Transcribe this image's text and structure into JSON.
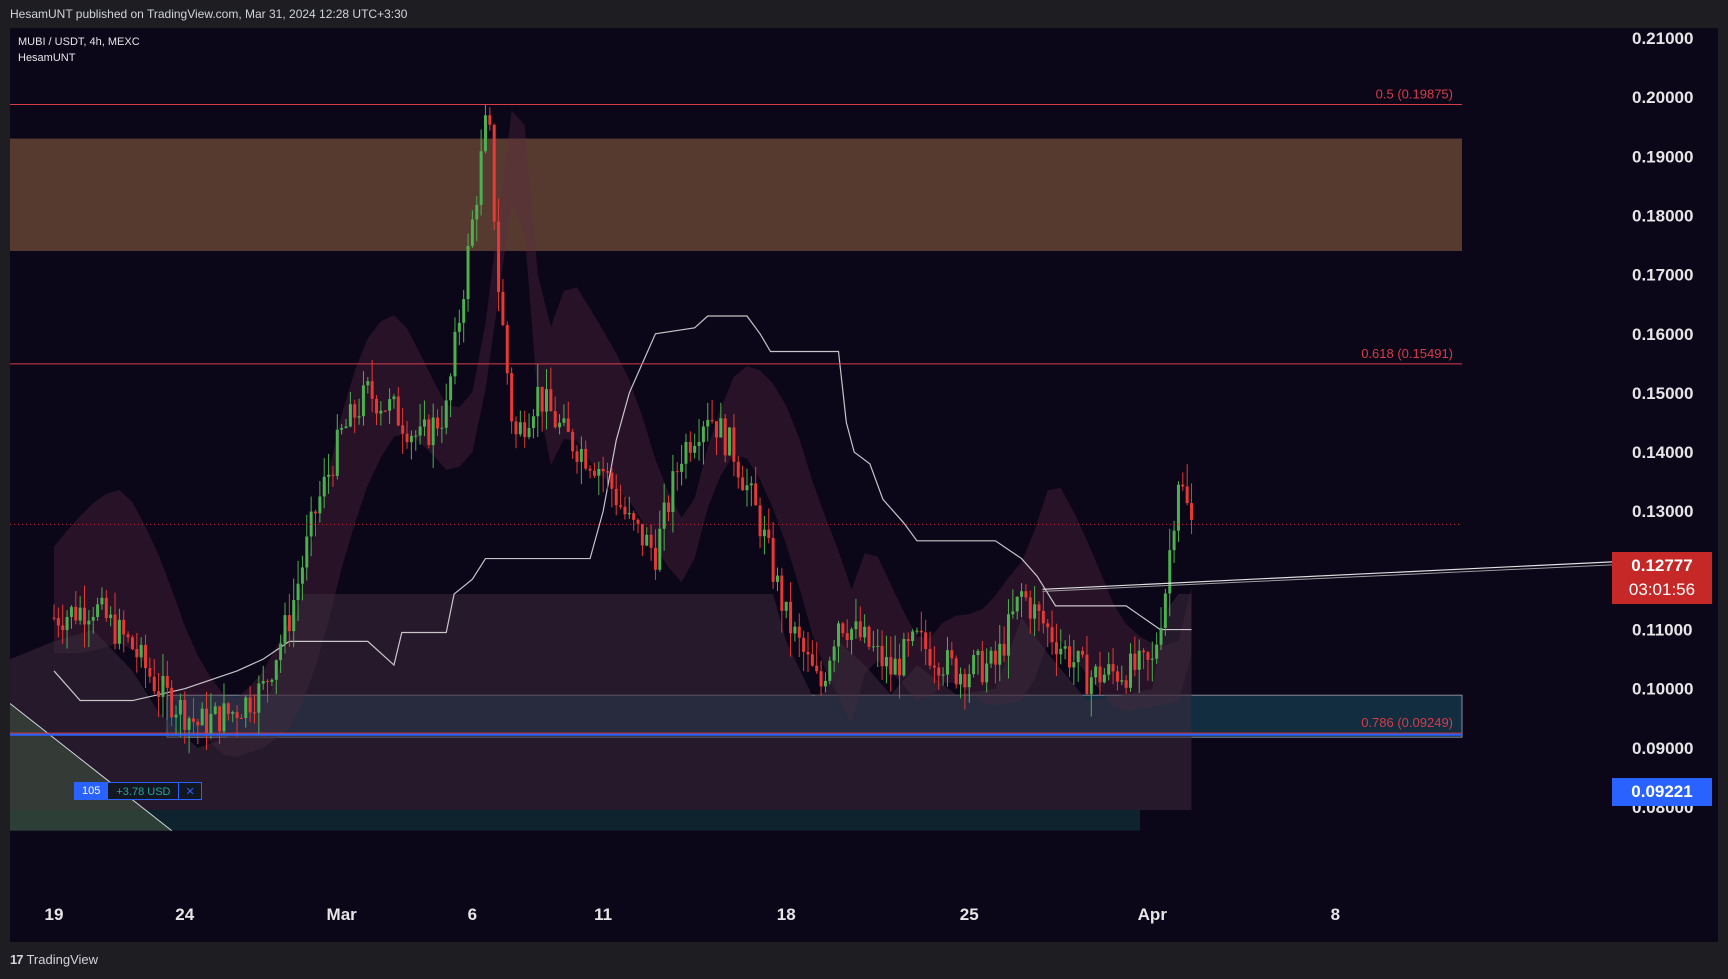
{
  "header": {
    "text": "HesamUNT published on TradingView.com, Mar 31, 2024 12:28 UTC+3:30"
  },
  "symbol": {
    "line1": "MUBI / USDT, 4h, MEXC",
    "line2": "HesamUNT"
  },
  "footer": {
    "brand": "TradingView",
    "logo_glyph": "17"
  },
  "last_price": {
    "value": "0.12777",
    "countdown": "03:01:56"
  },
  "alert_price": {
    "value": "0.09221"
  },
  "position": {
    "qty": "105",
    "pnl": "+3.78 USD",
    "close_glyph": "✕"
  },
  "colors": {
    "background": "#0c0619",
    "zone_supply": "#5c3d30",
    "zone_demand": "#143347",
    "fib_line": "#d63d48",
    "up": "#4caf50",
    "down": "#e53935",
    "last_price": "#c62828",
    "alert": "#2962ff"
  },
  "chart_data": {
    "type": "candlestick",
    "symbol": "MUBI / USDT",
    "interval": "4h",
    "exchange": "MEXC",
    "ylim": [
      0.076,
      0.214
    ],
    "y_ticks": [
      "0.21000",
      "0.20000",
      "0.19000",
      "0.18000",
      "0.17000",
      "0.16000",
      "0.15000",
      "0.14000",
      "0.13000",
      "0.12000",
      "0.11000",
      "0.10000",
      "0.09000",
      "0.08000"
    ],
    "x_ticks": [
      "19",
      "24",
      "Mar",
      "6",
      "11",
      "18",
      "25",
      "Apr",
      "8"
    ],
    "fib_levels": [
      {
        "label": "0.5 (0.19875)",
        "value": 0.19875
      },
      {
        "label": "0.618 (0.15491)",
        "value": 0.15491
      },
      {
        "label": "0.786 (0.09249)",
        "value": 0.09249
      }
    ],
    "zones": [
      {
        "name": "supply",
        "top": 0.193,
        "bottom": 0.174
      },
      {
        "name": "demand",
        "top": 0.0989,
        "bottom": 0.0918
      }
    ],
    "last_price": 0.12777,
    "alert_price": 0.09221,
    "trendline": {
      "start": {
        "day": 37.8,
        "price": 0.1168
      },
      "end": {
        "day": 55.5,
        "price": 0.1215
      }
    },
    "price_path": [
      [
        0,
        0.112
      ],
      [
        1.5,
        0.114
      ],
      [
        3,
        0.107
      ],
      [
        4,
        0.1
      ],
      [
        5.5,
        0.094
      ],
      [
        6.8,
        0.096
      ],
      [
        8,
        0.1
      ],
      [
        9,
        0.112
      ],
      [
        10,
        0.13
      ],
      [
        11,
        0.143
      ],
      [
        12,
        0.15
      ],
      [
        13,
        0.147
      ],
      [
        14,
        0.142
      ],
      [
        15,
        0.147
      ],
      [
        16.2,
        0.185
      ],
      [
        16.6,
        0.198
      ],
      [
        17,
        0.168
      ],
      [
        17.6,
        0.142
      ],
      [
        18.5,
        0.15
      ],
      [
        19.5,
        0.143
      ],
      [
        21,
        0.137
      ],
      [
        22,
        0.128
      ],
      [
        23,
        0.123
      ],
      [
        24,
        0.14
      ],
      [
        25,
        0.147
      ],
      [
        26,
        0.14
      ],
      [
        27,
        0.128
      ],
      [
        28,
        0.112
      ],
      [
        29.3,
        0.1
      ],
      [
        30,
        0.112
      ],
      [
        31,
        0.108
      ],
      [
        32,
        0.103
      ],
      [
        33,
        0.108
      ],
      [
        34.5,
        0.103
      ],
      [
        36,
        0.104
      ],
      [
        37,
        0.116
      ],
      [
        38,
        0.11
      ],
      [
        39.5,
        0.102
      ],
      [
        41,
        0.103
      ],
      [
        42,
        0.104
      ],
      [
        42.5,
        0.117
      ],
      [
        43,
        0.136
      ],
      [
        43.5,
        0.12777
      ]
    ],
    "reference_line": [
      [
        0,
        0.103
      ],
      [
        1,
        0.098
      ],
      [
        3,
        0.098
      ],
      [
        5,
        0.1
      ],
      [
        7,
        0.103
      ],
      [
        8,
        0.105
      ],
      [
        9,
        0.108
      ],
      [
        12,
        0.108
      ],
      [
        13,
        0.104
      ],
      [
        13.3,
        0.1095
      ],
      [
        15,
        0.1095
      ],
      [
        15.3,
        0.116
      ],
      [
        16,
        0.1185
      ],
      [
        16.5,
        0.122
      ],
      [
        20.5,
        0.122
      ],
      [
        21,
        0.13
      ],
      [
        21.5,
        0.142
      ],
      [
        22,
        0.15
      ],
      [
        23,
        0.16
      ],
      [
        24.5,
        0.161
      ],
      [
        25,
        0.163
      ],
      [
        26.5,
        0.163
      ],
      [
        27,
        0.16
      ],
      [
        27.4,
        0.157
      ],
      [
        30,
        0.157
      ],
      [
        30.3,
        0.145
      ],
      [
        30.6,
        0.14
      ],
      [
        31.2,
        0.138
      ],
      [
        31.7,
        0.132
      ],
      [
        32.5,
        0.128
      ],
      [
        33,
        0.125
      ],
      [
        36,
        0.125
      ],
      [
        37,
        0.122
      ],
      [
        37.6,
        0.119
      ],
      [
        38.3,
        0.114
      ],
      [
        41,
        0.114
      ],
      [
        42.3,
        0.11
      ],
      [
        43.5,
        0.11
      ]
    ]
  }
}
